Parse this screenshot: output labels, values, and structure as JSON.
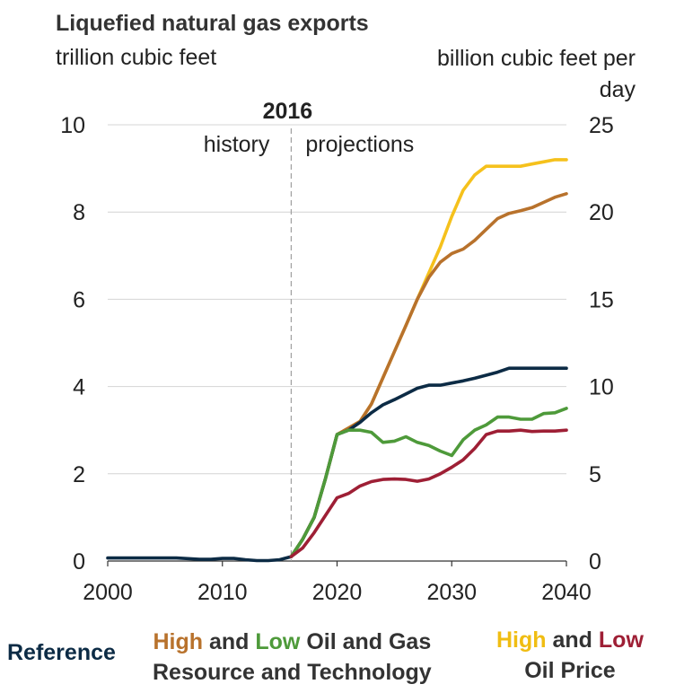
{
  "colors": {
    "reference": "#0c2b45",
    "high_resource": "#b8722c",
    "low_resource": "#4e9a3a",
    "high_oil": "#f5c11c",
    "low_oil": "#9e1f35",
    "grid": "#d4d4d4",
    "divider": "#a0a0a0"
  },
  "chart_data": {
    "type": "line",
    "title": "Liquefied natural gas exports",
    "ylabel_left": "trillion cubic feet",
    "ylabel_right": "billion cubic feet per day",
    "xlim": [
      2000,
      2040
    ],
    "ylim_left": [
      0,
      10
    ],
    "ylim_right": [
      0,
      25
    ],
    "xticks": [
      "2000",
      "2010",
      "2020",
      "2030",
      "2040"
    ],
    "yticks_left": [
      "0",
      "2",
      "4",
      "6",
      "8",
      "10"
    ],
    "yticks_right": [
      "0",
      "5",
      "10",
      "15",
      "20",
      "25"
    ],
    "grid": "horizontal",
    "annotations": {
      "year_label": "2016",
      "history": "history",
      "projections": "projections"
    },
    "series": [
      {
        "name": "High Oil Price",
        "color": "high_oil",
        "x": [
          2016,
          2017,
          2018,
          2019,
          2020,
          2021,
          2022,
          2023,
          2024,
          2025,
          2026,
          2027,
          2028,
          2029,
          2030,
          2031,
          2032,
          2033,
          2034,
          2035,
          2036,
          2037,
          2038,
          2039,
          2040
        ],
        "y": [
          0.1,
          0.5,
          1.0,
          1.9,
          2.9,
          3.05,
          3.2,
          3.6,
          4.2,
          4.8,
          5.4,
          6.0,
          6.6,
          7.2,
          7.9,
          8.5,
          8.85,
          9.05,
          9.05,
          9.05,
          9.05,
          9.1,
          9.15,
          9.2,
          9.2
        ]
      },
      {
        "name": "High Oil and Gas Resource and Technology",
        "color": "high_resource",
        "x": [
          2016,
          2017,
          2018,
          2019,
          2020,
          2021,
          2022,
          2023,
          2024,
          2025,
          2026,
          2027,
          2028,
          2029,
          2030,
          2031,
          2032,
          2033,
          2034,
          2035,
          2036,
          2037,
          2038,
          2039,
          2040
        ],
        "y": [
          0.1,
          0.5,
          1.0,
          1.9,
          2.9,
          3.05,
          3.2,
          3.6,
          4.2,
          4.8,
          5.4,
          6.0,
          6.5,
          6.85,
          7.05,
          7.15,
          7.35,
          7.6,
          7.85,
          7.97,
          8.03,
          8.1,
          8.22,
          8.34,
          8.42
        ]
      },
      {
        "name": "Reference",
        "color": "reference",
        "x": [
          2000,
          2002,
          2004,
          2006,
          2008,
          2009,
          2010,
          2011,
          2012,
          2013,
          2014,
          2015,
          2016,
          2017,
          2018,
          2019,
          2020,
          2021,
          2022,
          2023,
          2024,
          2025,
          2026,
          2027,
          2028,
          2029,
          2030,
          2031,
          2032,
          2033,
          2034,
          2035,
          2036,
          2037,
          2038,
          2039,
          2040
        ],
        "y": [
          0.07,
          0.07,
          0.07,
          0.07,
          0.04,
          0.04,
          0.06,
          0.06,
          0.03,
          0.01,
          0.01,
          0.03,
          0.1,
          0.5,
          1.0,
          1.9,
          2.9,
          3.0,
          3.18,
          3.4,
          3.58,
          3.7,
          3.83,
          3.96,
          4.03,
          4.03,
          4.08,
          4.13,
          4.19,
          4.26,
          4.33,
          4.42,
          4.42,
          4.42,
          4.42,
          4.42,
          4.42
        ]
      },
      {
        "name": "Low Oil and Gas Resource and Technology",
        "color": "low_resource",
        "x": [
          2016,
          2017,
          2018,
          2019,
          2020,
          2021,
          2022,
          2023,
          2024,
          2025,
          2026,
          2027,
          2028,
          2029,
          2030,
          2031,
          2032,
          2033,
          2034,
          2035,
          2036,
          2037,
          2038,
          2039,
          2040
        ],
        "y": [
          0.1,
          0.5,
          1.0,
          1.9,
          2.9,
          3.0,
          3.0,
          2.95,
          2.72,
          2.75,
          2.85,
          2.72,
          2.65,
          2.52,
          2.42,
          2.78,
          3.0,
          3.12,
          3.3,
          3.3,
          3.25,
          3.25,
          3.38,
          3.4,
          3.5
        ]
      },
      {
        "name": "Low Oil Price",
        "color": "low_oil",
        "x": [
          2016,
          2017,
          2018,
          2019,
          2020,
          2021,
          2022,
          2023,
          2024,
          2025,
          2026,
          2027,
          2028,
          2029,
          2030,
          2031,
          2032,
          2033,
          2034,
          2035,
          2036,
          2037,
          2038,
          2039,
          2040
        ],
        "y": [
          0.1,
          0.3,
          0.65,
          1.05,
          1.45,
          1.55,
          1.72,
          1.82,
          1.87,
          1.88,
          1.87,
          1.83,
          1.88,
          2.0,
          2.15,
          2.32,
          2.58,
          2.9,
          2.98,
          2.98,
          3.0,
          2.97,
          2.98,
          2.98,
          3.0
        ]
      }
    ]
  },
  "legend": {
    "reference": "Reference",
    "resource_high": "High",
    "resource_and": "and",
    "resource_low": "Low",
    "resource_rest_line1": "Oil and Gas",
    "resource_line2": "Resource and Technology",
    "oil_high": "High",
    "oil_and": "and",
    "oil_low": "Low",
    "oil_line2": "Oil Price"
  }
}
